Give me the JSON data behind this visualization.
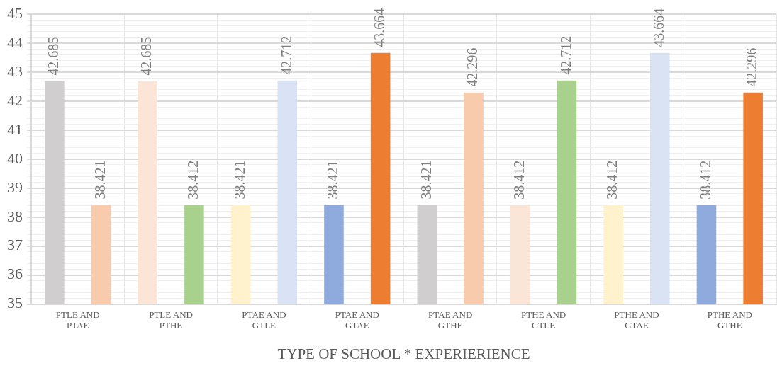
{
  "chart_data": {
    "type": "bar",
    "xlabel": "TYPE OF SCHOOL * EXPERIERIENCE",
    "categories": [
      "PTLE AND PTAE",
      "PTLE AND PTHE",
      "PTAE AND GTLE",
      "PTAE AND GTAE",
      "PTAE AND GTHE",
      "PTHE AND GTLE",
      "PTHE AND GTAE",
      "PTHE AND GTHE"
    ],
    "series": [
      {
        "colors": [
          "#d0cece",
          "#fbe5d6",
          "#fff2cc",
          "#8faadc",
          "#d0cece",
          "#fbe5d6",
          "#fff2cc",
          "#8faadc"
        ],
        "values": [
          42.685,
          42.685,
          38.421,
          38.421,
          38.421,
          38.412,
          38.412,
          38.412
        ]
      },
      {
        "colors": [
          "#f8cbad",
          "#a9d18e",
          "#dae3f3",
          "#ed7d31",
          "#f8cbad",
          "#a9d18e",
          "#dae3f3",
          "#ed7d31"
        ],
        "values": [
          38.421,
          38.412,
          42.712,
          43.664,
          42.296,
          42.712,
          43.664,
          42.296
        ]
      }
    ],
    "ylim": [
      35,
      45
    ],
    "yticks": [
      35,
      36,
      37,
      38,
      39,
      40,
      41,
      42,
      43,
      44,
      45,
      {
        "value": 35.2,
        "label": null
      },
      {
        "value": 35.4,
        "label": null
      },
      {
        "value": 35.6,
        "label": null
      },
      {
        "value": 35.8,
        "label": null
      },
      {
        "value": 36.2,
        "label": null
      },
      {
        "value": 36.4,
        "label": null
      },
      {
        "value": 36.6,
        "label": null
      },
      {
        "value": 36.8,
        "label": null
      },
      {
        "value": 37.2,
        "label": null
      },
      {
        "value": 37.4,
        "label": null
      },
      {
        "value": 37.6,
        "label": null
      },
      {
        "value": 37.8,
        "label": null
      },
      {
        "value": 38.2,
        "label": null
      },
      {
        "value": 38.4,
        "label": null
      },
      {
        "value": 38.6,
        "label": null
      },
      {
        "value": 38.8,
        "label": null
      },
      {
        "value": 39.2,
        "label": null
      },
      {
        "value": 39.4,
        "label": null
      },
      {
        "value": 39.6,
        "label": null
      },
      {
        "value": 39.8,
        "label": null
      },
      {
        "value": 40.2,
        "label": null
      },
      {
        "value": 40.4,
        "label": null
      },
      {
        "value": 40.6,
        "label": null
      },
      {
        "value": 40.8,
        "label": null
      },
      {
        "value": 41.2,
        "label": null
      },
      {
        "value": 41.4,
        "label": null
      },
      {
        "value": 41.6,
        "label": null
      },
      {
        "value": 41.8,
        "label": null
      },
      {
        "value": 42.2,
        "label": null
      },
      {
        "value": 42.4,
        "label": null
      },
      {
        "value": 42.6,
        "label": null
      },
      {
        "value": 42.8,
        "label": null
      },
      {
        "value": 43.2,
        "label": null
      },
      {
        "value": 43.4,
        "label": null
      },
      {
        "value": 43.6,
        "label": null
      },
      {
        "value": 43.8,
        "label": null
      },
      {
        "value": 44.2,
        "label": null
      },
      {
        "value": 44.4,
        "label": null
      },
      {
        "value": 44.6,
        "label": null
      },
      {
        "value": 44.8,
        "label": null
      }
    ],
    "grid": true,
    "data_labels": true
  }
}
